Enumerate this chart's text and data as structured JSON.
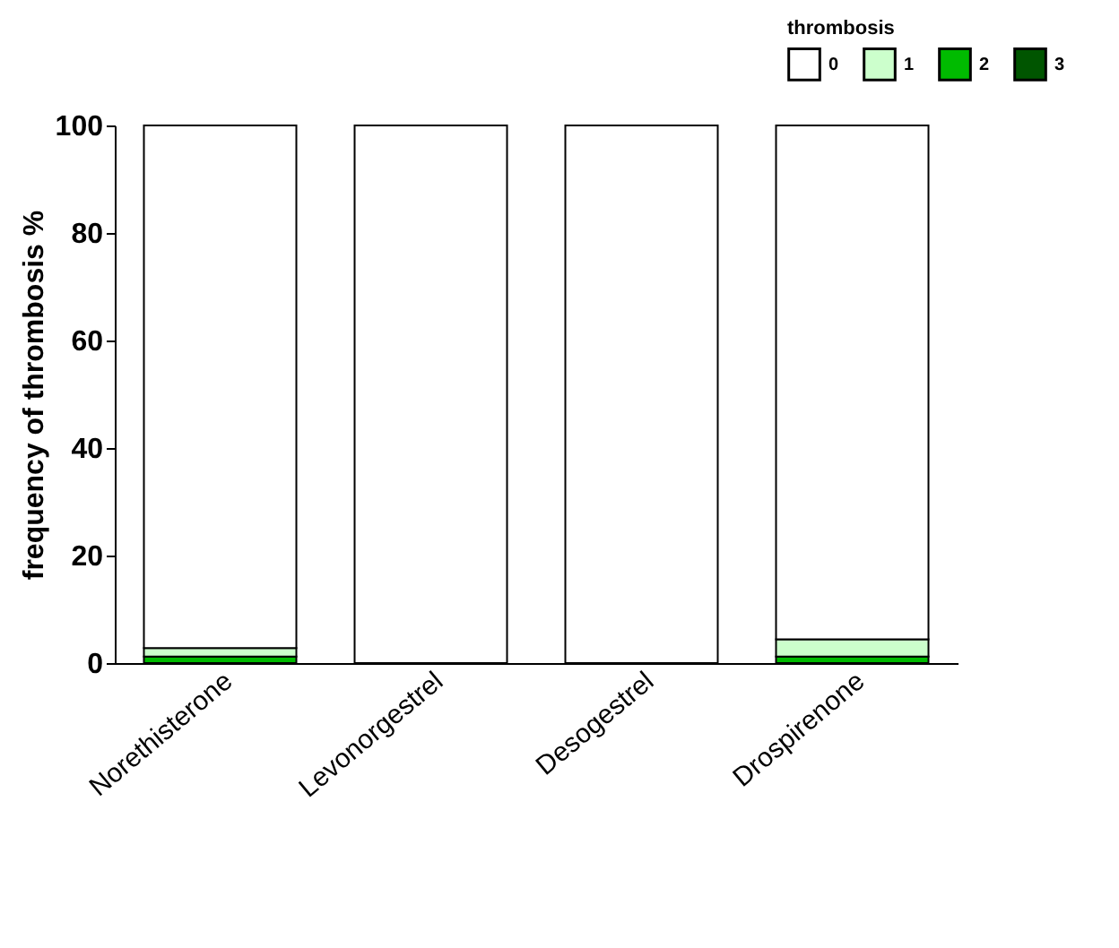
{
  "chart_data": {
    "type": "bar",
    "stacked": true,
    "ylabel": "frequency of thrombosis %",
    "legend_title": "thrombosis",
    "legend": "top right",
    "categories": [
      "Norethisterone",
      "Levonorgestrel",
      "Desogestrel",
      "Drospirenone"
    ],
    "series": [
      {
        "name": "3",
        "color": "#005500",
        "values": [
          0,
          0,
          0,
          0
        ]
      },
      {
        "name": "2",
        "color": "#00bb00",
        "values": [
          1.2,
          0,
          0,
          1.2
        ]
      },
      {
        "name": "1",
        "color": "#ccffcc",
        "values": [
          1.6,
          0,
          0,
          3.2
        ]
      },
      {
        "name": "0",
        "color": "#ffffff",
        "values": [
          97.2,
          100,
          100,
          95.6
        ]
      }
    ],
    "ylim": [
      0,
      100
    ],
    "yticks": [
      0,
      20,
      40,
      60,
      80,
      100
    ],
    "grid": false
  }
}
